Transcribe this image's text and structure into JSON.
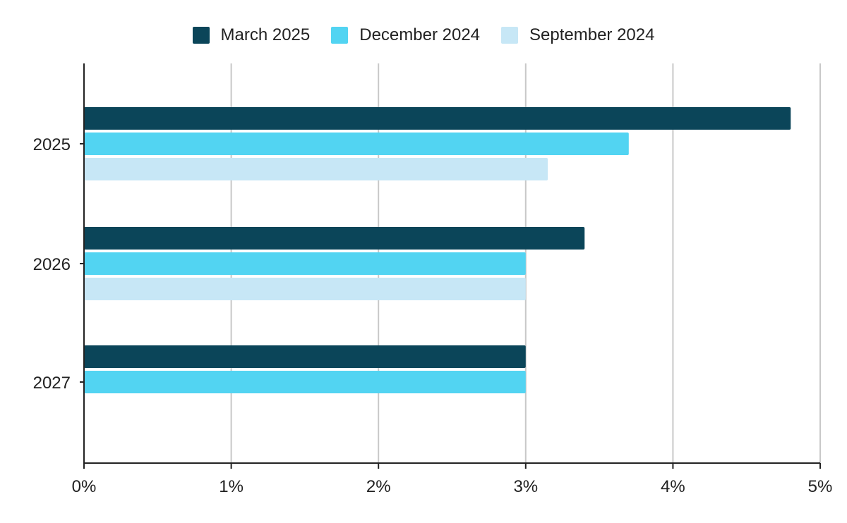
{
  "chart_data": {
    "type": "bar",
    "orientation": "horizontal",
    "title": "",
    "xlabel": "",
    "ylabel": "",
    "categories": [
      "2025",
      "2026",
      "2027"
    ],
    "series": [
      {
        "name": "March 2025",
        "color": "#0b4559",
        "values": [
          4.8,
          3.4,
          3.0
        ]
      },
      {
        "name": "December 2024",
        "color": "#52d4f2",
        "values": [
          3.7,
          3.0,
          3.0
        ]
      },
      {
        "name": "September 2024",
        "color": "#c7e7f6",
        "values": [
          3.15,
          3.0,
          null
        ]
      }
    ],
    "xlim": [
      0,
      5
    ],
    "x_ticks": [
      "0%",
      "1%",
      "2%",
      "3%",
      "4%",
      "5%"
    ],
    "grid": "vertical",
    "legend_position": "top-center"
  }
}
